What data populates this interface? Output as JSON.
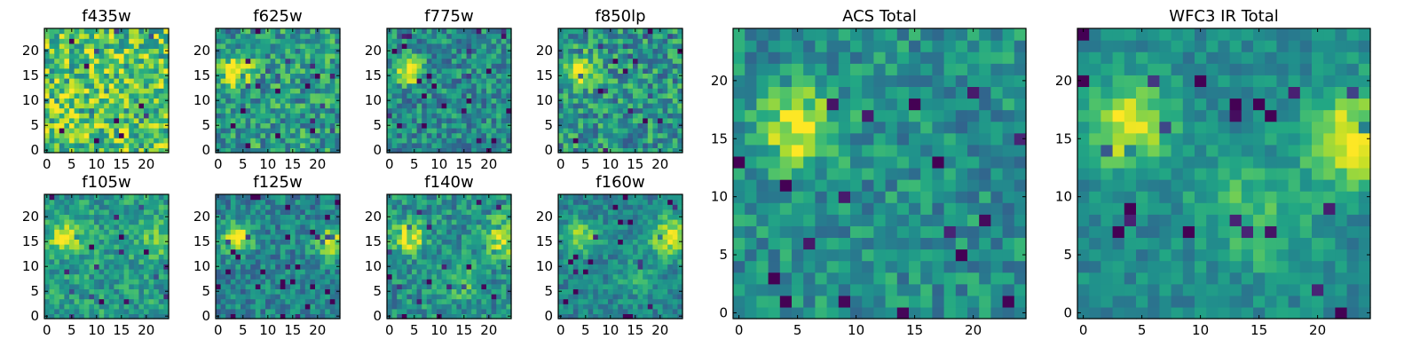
{
  "chart_data": [
    {
      "type": "heatmap",
      "title": "f435w",
      "xlim": [
        0,
        24
      ],
      "ylim": [
        0,
        24
      ],
      "xticks": [
        "0",
        "5",
        "10",
        "15",
        "20"
      ],
      "yticks": [
        "0",
        "5",
        "10",
        "15",
        "20"
      ],
      "colormap": "viridis",
      "seed": 11,
      "blobs": [],
      "noise": 0.3,
      "base": 0.72
    },
    {
      "type": "heatmap",
      "title": "f625w",
      "xlim": [
        0,
        24
      ],
      "ylim": [
        0,
        24
      ],
      "xticks": [
        "0",
        "5",
        "10",
        "15",
        "20"
      ],
      "yticks": [
        "0",
        "5",
        "10",
        "15",
        "20"
      ],
      "colormap": "viridis",
      "seed": 23,
      "blobs": [
        [
          4,
          16,
          0.55,
          2.0
        ]
      ],
      "noise": 0.25,
      "base": 0.55
    },
    {
      "type": "heatmap",
      "title": "f775w",
      "xlim": [
        0,
        24
      ],
      "ylim": [
        0,
        24
      ],
      "xticks": [
        "0",
        "5",
        "10",
        "15",
        "20"
      ],
      "yticks": [
        "0",
        "5",
        "10",
        "15",
        "20"
      ],
      "colormap": "viridis",
      "seed": 37,
      "blobs": [
        [
          4,
          16,
          0.55,
          1.8
        ]
      ],
      "noise": 0.22,
      "base": 0.48
    },
    {
      "type": "heatmap",
      "title": "f850lp",
      "xlim": [
        0,
        24
      ],
      "ylim": [
        0,
        24
      ],
      "xticks": [
        "0",
        "5",
        "10",
        "15",
        "20"
      ],
      "yticks": [
        "0",
        "5",
        "10",
        "15",
        "20"
      ],
      "colormap": "viridis",
      "seed": 41,
      "blobs": [
        [
          4,
          16,
          0.5,
          2.0
        ]
      ],
      "noise": 0.25,
      "base": 0.52
    },
    {
      "type": "heatmap",
      "title": "f105w",
      "xlim": [
        0,
        24
      ],
      "ylim": [
        0,
        24
      ],
      "xticks": [
        "0",
        "5",
        "10",
        "15",
        "20"
      ],
      "yticks": [
        "0",
        "5",
        "10",
        "15",
        "20"
      ],
      "colormap": "viridis",
      "seed": 53,
      "blobs": [
        [
          4,
          16,
          0.45,
          2.2
        ],
        [
          22,
          16,
          0.2,
          3.0
        ]
      ],
      "noise": 0.18,
      "base": 0.55
    },
    {
      "type": "heatmap",
      "title": "f125w",
      "xlim": [
        0,
        24
      ],
      "ylim": [
        0,
        24
      ],
      "xticks": [
        "0",
        "5",
        "10",
        "15",
        "20"
      ],
      "yticks": [
        "0",
        "5",
        "10",
        "15",
        "20"
      ],
      "colormap": "viridis",
      "seed": 67,
      "blobs": [
        [
          4,
          16,
          0.5,
          2.2
        ],
        [
          23,
          15,
          0.4,
          2.5
        ]
      ],
      "noise": 0.18,
      "base": 0.45
    },
    {
      "type": "heatmap",
      "title": "f140w",
      "xlim": [
        0,
        24
      ],
      "ylim": [
        0,
        24
      ],
      "xticks": [
        "0",
        "5",
        "10",
        "15",
        "20"
      ],
      "yticks": [
        "0",
        "5",
        "10",
        "15",
        "20"
      ],
      "colormap": "viridis",
      "seed": 79,
      "blobs": [
        [
          4,
          16,
          0.45,
          2.3
        ],
        [
          23,
          16,
          0.45,
          2.5
        ],
        [
          15,
          7,
          0.15,
          3.0
        ]
      ],
      "noise": 0.2,
      "base": 0.5
    },
    {
      "type": "heatmap",
      "title": "f160w",
      "xlim": [
        0,
        24
      ],
      "ylim": [
        0,
        24
      ],
      "xticks": [
        "0",
        "5",
        "10",
        "15",
        "20"
      ],
      "yticks": [
        "0",
        "5",
        "10",
        "15",
        "20"
      ],
      "colormap": "viridis",
      "seed": 97,
      "blobs": [
        [
          4,
          16,
          0.4,
          2.3
        ],
        [
          22,
          16,
          0.5,
          2.8
        ],
        [
          15,
          8,
          0.15,
          3.0
        ]
      ],
      "noise": 0.15,
      "base": 0.45
    },
    {
      "type": "heatmap",
      "title": "ACS Total",
      "xlim": [
        0,
        24
      ],
      "ylim": [
        0,
        24
      ],
      "xticks": [
        "0",
        "5",
        "10",
        "15",
        "20"
      ],
      "yticks": [
        "0",
        "5",
        "10",
        "15",
        "20"
      ],
      "colormap": "viridis",
      "seed": 131,
      "blobs": [
        [
          5,
          16,
          0.5,
          2.2
        ]
      ],
      "noise": 0.18,
      "base": 0.5
    },
    {
      "type": "heatmap",
      "title": "WFC3 IR Total",
      "xlim": [
        0,
        24
      ],
      "ylim": [
        0,
        24
      ],
      "xticks": [
        "0",
        "5",
        "10",
        "15",
        "20"
      ],
      "yticks": [
        "0",
        "5",
        "10",
        "15",
        "20"
      ],
      "colormap": "viridis",
      "seed": 151,
      "blobs": [
        [
          4,
          16,
          0.5,
          2.5
        ],
        [
          23,
          15,
          0.5,
          2.8
        ],
        [
          15,
          8,
          0.2,
          3.0
        ],
        [
          12,
          11,
          0.12,
          2.0
        ]
      ],
      "noise": 0.12,
      "base": 0.48
    }
  ]
}
